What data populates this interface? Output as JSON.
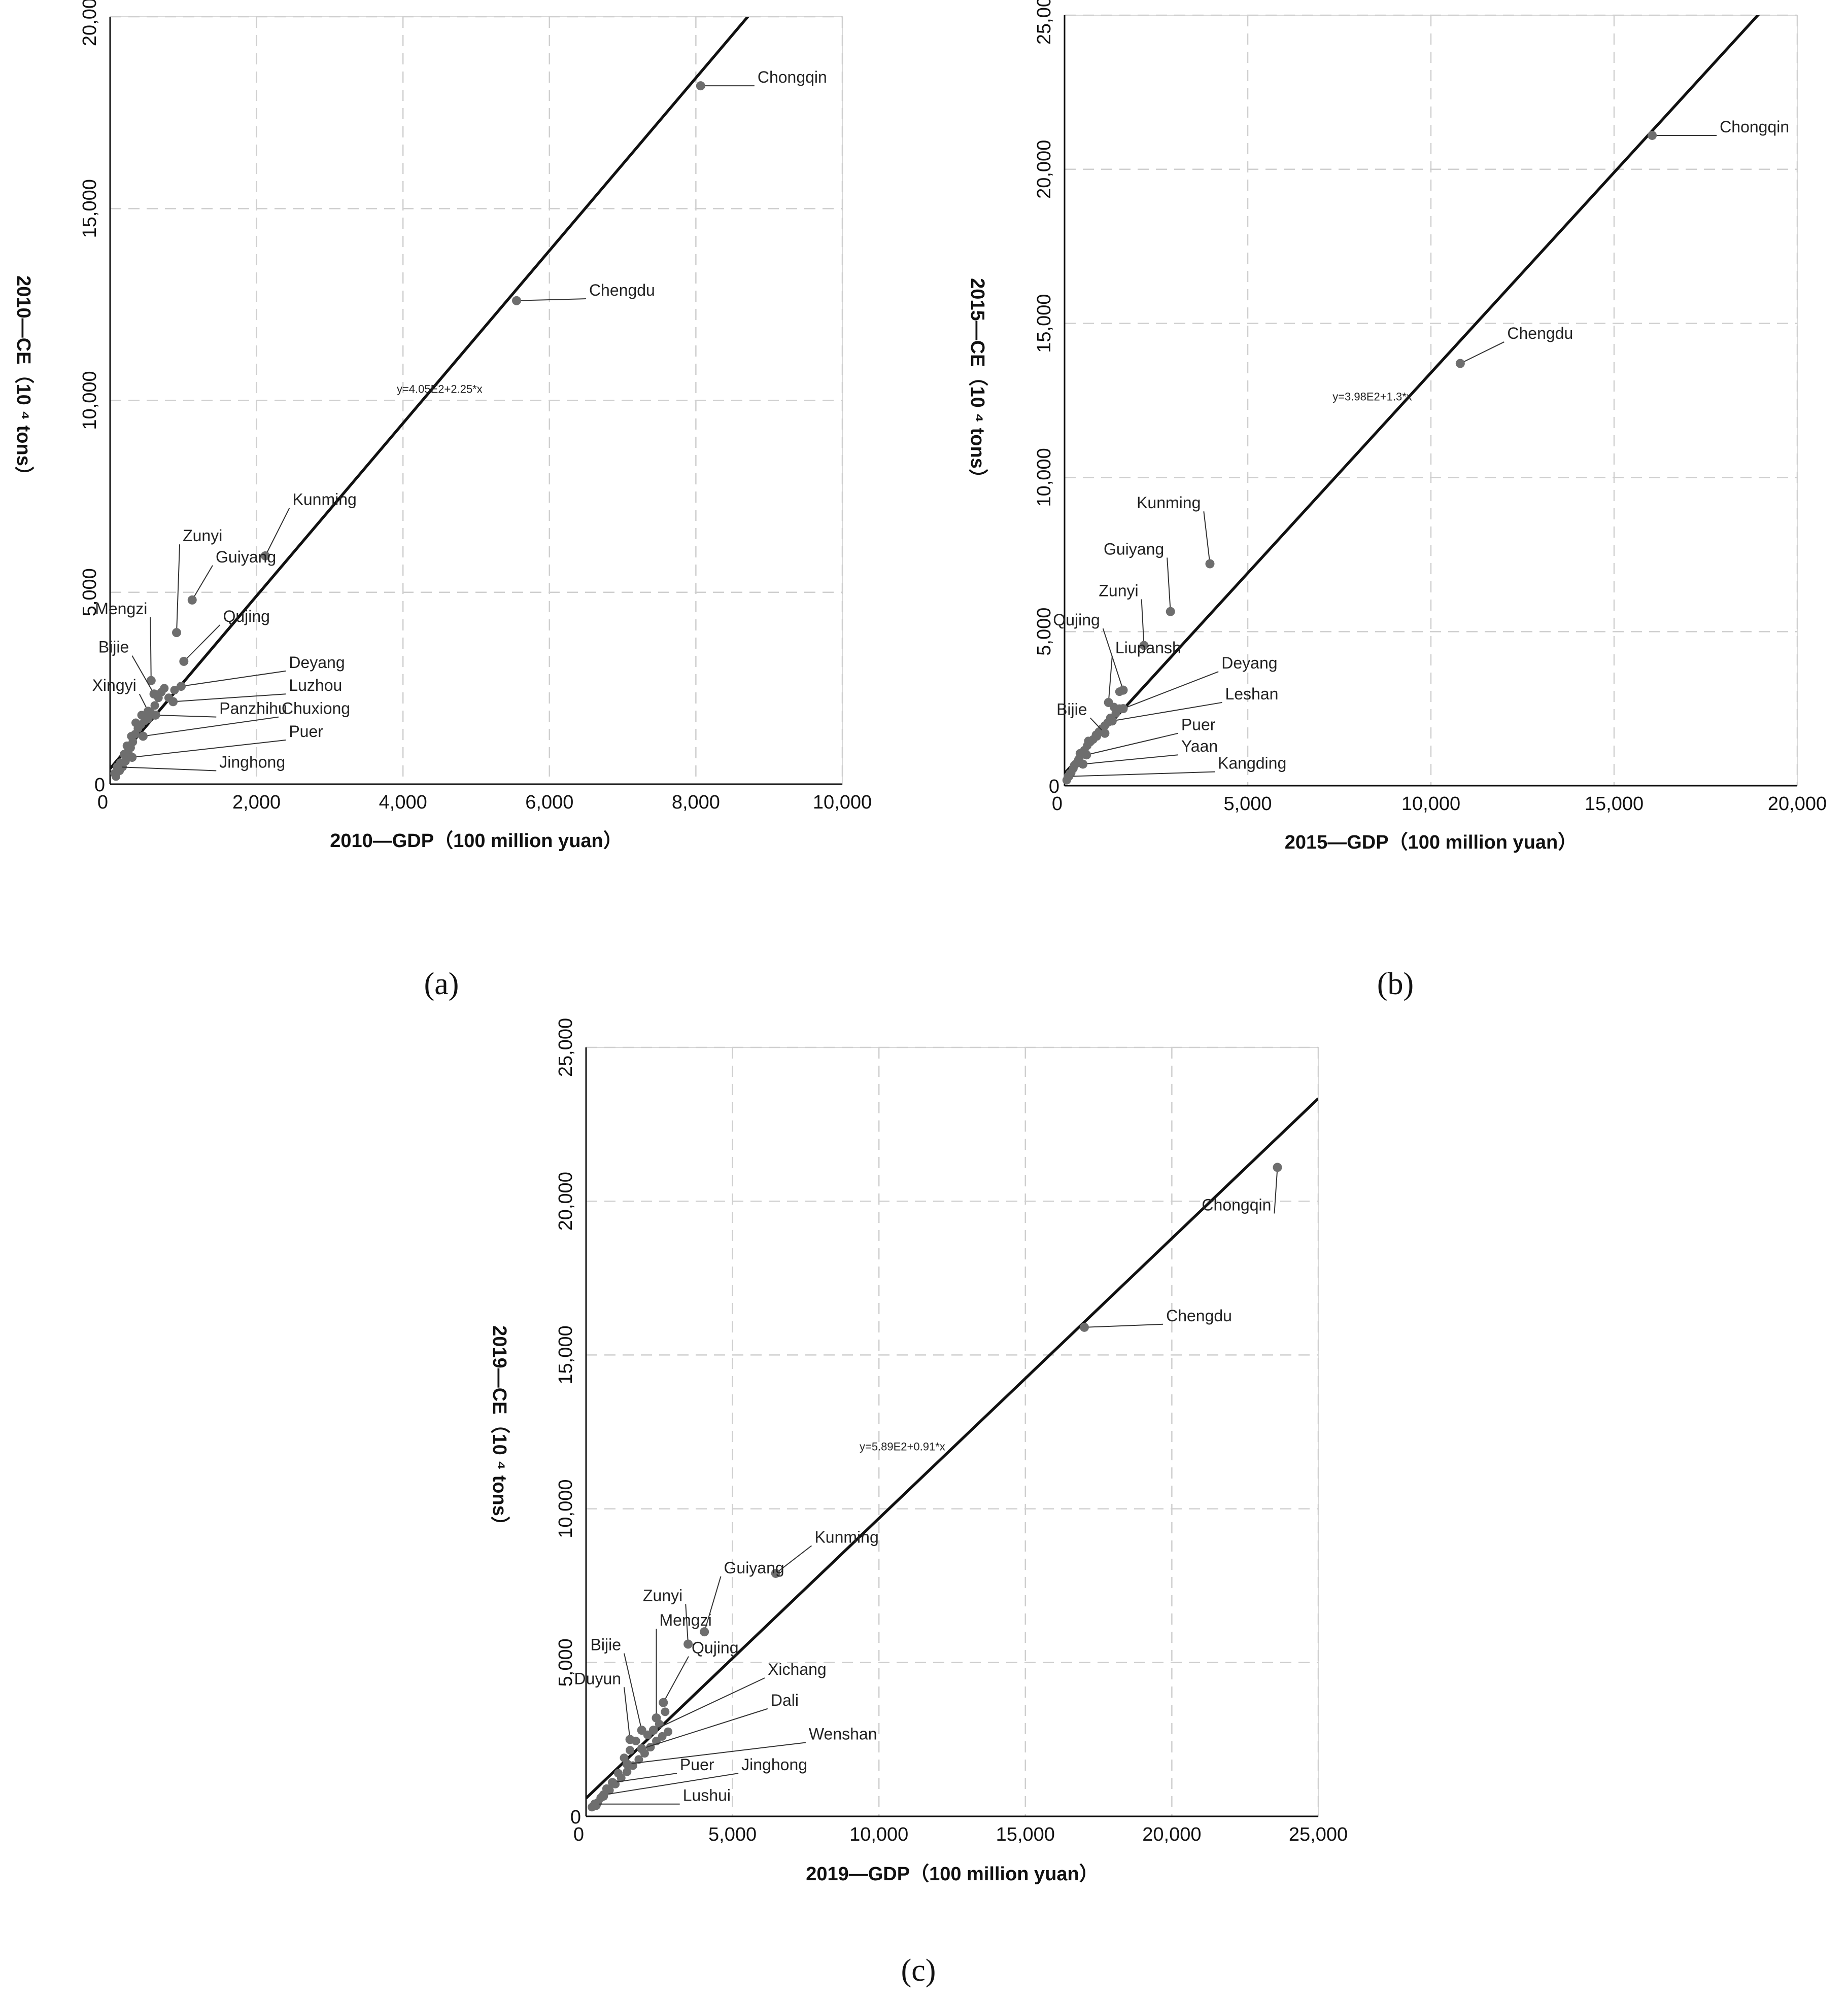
{
  "chart_data": [
    {
      "panel": "a",
      "type": "scatter",
      "caption": "(a)",
      "xlabel": "2010—GDP（100 million yuan）",
      "ylabel": "2010—CE（10 ⁴ tons）",
      "xlim": [
        0,
        10000
      ],
      "ylim": [
        0,
        20000
      ],
      "xticks": [
        0,
        2000,
        4000,
        6000,
        8000,
        10000
      ],
      "yticks": [
        0,
        5000,
        10000,
        15000,
        20000
      ],
      "xtick_labels": [
        "0",
        "2,000",
        "4,000",
        "6,000",
        "8,000",
        "10,000"
      ],
      "ytick_labels": [
        "0",
        "5,000",
        "10,000",
        "15,000",
        "20,000"
      ],
      "grid": true,
      "fit": {
        "equation": "y=4.05E2+2.25*x",
        "intercept": 405,
        "slope": 2.25,
        "label_at": [
          4500,
          10200
        ]
      },
      "labeled_points": [
        {
          "name": "Chongqin",
          "x": 8065,
          "y": 18200,
          "label_at": [
            8800,
            18200
          ]
        },
        {
          "name": "Chengdu",
          "x": 5551,
          "y": 12600,
          "label_at": [
            6500,
            12650
          ]
        },
        {
          "name": "Kunming",
          "x": 2120,
          "y": 5950,
          "label_at": [
            2450,
            7200
          ]
        },
        {
          "name": "Zunyi",
          "x": 908,
          "y": 3950,
          "label_at": [
            950,
            6250
          ]
        },
        {
          "name": "Guiyang",
          "x": 1121,
          "y": 4800,
          "label_at": [
            1400,
            5700
          ]
        },
        {
          "name": "Mengzi",
          "x": 560,
          "y": 2700,
          "label_at": [
            550,
            4350
          ]
        },
        {
          "name": "Qujing",
          "x": 1007,
          "y": 3200,
          "label_at": [
            1500,
            4150
          ]
        },
        {
          "name": "Bijie",
          "x": 600,
          "y": 2350,
          "label_at": [
            300,
            3350
          ]
        },
        {
          "name": "Xingyi",
          "x": 520,
          "y": 1900,
          "label_at": [
            400,
            2350
          ]
        },
        {
          "name": "Deyang",
          "x": 970,
          "y": 2550,
          "label_at": [
            2400,
            2950
          ]
        },
        {
          "name": "Luzhou",
          "x": 860,
          "y": 2150,
          "label_at": [
            2400,
            2350
          ]
        },
        {
          "name": "Panzhihu",
          "x": 620,
          "y": 1800,
          "label_at": [
            1450,
            1750
          ]
        },
        {
          "name": "Chuxiong",
          "x": 450,
          "y": 1250,
          "label_at": [
            2300,
            1750
          ]
        },
        {
          "name": "Puer",
          "x": 300,
          "y": 700,
          "label_at": [
            2400,
            1150
          ]
        },
        {
          "name": "Jinghong",
          "x": 100,
          "y": 450,
          "label_at": [
            1450,
            350
          ]
        }
      ],
      "cluster_points": [
        [
          80,
          200
        ],
        [
          130,
          350
        ],
        [
          170,
          450
        ],
        [
          210,
          600
        ],
        [
          250,
          800
        ],
        [
          280,
          950
        ],
        [
          310,
          1100
        ],
        [
          340,
          1300
        ],
        [
          380,
          1450
        ],
        [
          420,
          1550
        ],
        [
          470,
          1650
        ],
        [
          520,
          1700
        ],
        [
          560,
          1850
        ],
        [
          610,
          2050
        ],
        [
          660,
          2250
        ],
        [
          700,
          2400
        ],
        [
          740,
          2500
        ],
        [
          800,
          2250
        ],
        [
          880,
          2450
        ],
        [
          350,
          1600
        ],
        [
          430,
          1800
        ],
        [
          290,
          1250
        ],
        [
          230,
          1000
        ],
        [
          190,
          780
        ],
        [
          140,
          560
        ],
        [
          100,
          420
        ],
        [
          60,
          280
        ]
      ]
    },
    {
      "panel": "b",
      "type": "scatter",
      "caption": "(b)",
      "xlabel": "2015—GDP（100 million yuan）",
      "ylabel": "2015—CE（10 ⁴ tons）",
      "xlim": [
        0,
        20000
      ],
      "ylim": [
        0,
        25000
      ],
      "xticks": [
        0,
        5000,
        10000,
        15000,
        20000
      ],
      "yticks": [
        0,
        5000,
        10000,
        15000,
        20000,
        25000
      ],
      "xtick_labels": [
        "0",
        "5,000",
        "10,000",
        "15,000",
        "20,000"
      ],
      "ytick_labels": [
        "0",
        "5,000",
        "10,000",
        "15,000",
        "20,000",
        "25,000"
      ],
      "grid": true,
      "fit": {
        "equation": "y=3.98E2+1.3*x",
        "intercept": 398,
        "slope": 1.3,
        "label_at": [
          8400,
          12500
        ]
      },
      "labeled_points": [
        {
          "name": "Chongqin",
          "x": 16040,
          "y": 21100,
          "label_at": [
            17800,
            21100
          ]
        },
        {
          "name": "Chengdu",
          "x": 10801,
          "y": 13700,
          "label_at": [
            12000,
            14400
          ]
        },
        {
          "name": "Kunming",
          "x": 3968,
          "y": 7200,
          "label_at": [
            3800,
            8900
          ]
        },
        {
          "name": "Guiyang",
          "x": 2891,
          "y": 5650,
          "label_at": [
            2800,
            7400
          ]
        },
        {
          "name": "Zunyi",
          "x": 2168,
          "y": 4550,
          "label_at": [
            2100,
            6050
          ]
        },
        {
          "name": "Qujing",
          "x": 1600,
          "y": 3100,
          "label_at": [
            1050,
            5100
          ]
        },
        {
          "name": "Liupansh",
          "x": 1200,
          "y": 2700,
          "label_at": [
            1300,
            4200
          ]
        },
        {
          "name": "Deyang",
          "x": 1600,
          "y": 2500,
          "label_at": [
            4200,
            3700
          ]
        },
        {
          "name": "Bijie",
          "x": 1100,
          "y": 1700,
          "label_at": [
            700,
            2200
          ]
        },
        {
          "name": "Leshan",
          "x": 1300,
          "y": 2100,
          "label_at": [
            4300,
            2700
          ]
        },
        {
          "name": "Puer",
          "x": 600,
          "y": 1000,
          "label_at": [
            3100,
            1700
          ]
        },
        {
          "name": "Yaan",
          "x": 500,
          "y": 700,
          "label_at": [
            3100,
            1000
          ]
        },
        {
          "name": "Kangding",
          "x": 100,
          "y": 300,
          "label_at": [
            4100,
            450
          ]
        }
      ],
      "cluster_points": [
        [
          60,
          180
        ],
        [
          120,
          300
        ],
        [
          180,
          420
        ],
        [
          240,
          560
        ],
        [
          300,
          700
        ],
        [
          380,
          850
        ],
        [
          460,
          1000
        ],
        [
          540,
          1150
        ],
        [
          620,
          1300
        ],
        [
          700,
          1420
        ],
        [
          780,
          1500
        ],
        [
          860,
          1650
        ],
        [
          940,
          1750
        ],
        [
          1020,
          1850
        ],
        [
          1100,
          1950
        ],
        [
          1180,
          2050
        ],
        [
          1250,
          2200
        ],
        [
          1400,
          2350
        ],
        [
          1500,
          2500
        ],
        [
          1350,
          2550
        ],
        [
          1500,
          3050
        ],
        [
          1200,
          2700
        ],
        [
          880,
          1600
        ],
        [
          650,
          1450
        ],
        [
          420,
          1050
        ],
        [
          260,
          650
        ],
        [
          150,
          400
        ]
      ]
    },
    {
      "panel": "c",
      "type": "scatter",
      "caption": "(c)",
      "xlabel": "2019—GDP（100 million yuan）",
      "ylabel": "2019—CE（10 ⁴ tons）",
      "xlim": [
        0,
        25000
      ],
      "ylim": [
        0,
        25000
      ],
      "xticks": [
        0,
        5000,
        10000,
        15000,
        20000,
        25000
      ],
      "yticks": [
        0,
        5000,
        10000,
        15000,
        20000,
        25000
      ],
      "xtick_labels": [
        "0",
        "5,000",
        "10,000",
        "15,000",
        "20,000",
        "25,000"
      ],
      "ytick_labels": [
        "0",
        "5,000",
        "10,000",
        "15,000",
        "20,000",
        "25,000"
      ],
      "grid": true,
      "fit": {
        "equation": "y=5.89E2+0.91*x",
        "intercept": 589,
        "slope": 0.91,
        "label_at": [
          10800,
          11900
        ]
      },
      "labeled_points": [
        {
          "name": "Chongqin",
          "x": 23606,
          "y": 21100,
          "label_at": [
            23500,
            19600
          ]
        },
        {
          "name": "Chengdu",
          "x": 17013,
          "y": 15900,
          "label_at": [
            19700,
            16000
          ]
        },
        {
          "name": "Kunming",
          "x": 6476,
          "y": 7900,
          "label_at": [
            7700,
            8800
          ]
        },
        {
          "name": "Guiyang",
          "x": 4040,
          "y": 6000,
          "label_at": [
            4600,
            7800
          ]
        },
        {
          "name": "Zunyi",
          "x": 3484,
          "y": 5600,
          "label_at": [
            3400,
            6900
          ]
        },
        {
          "name": "Mengzi",
          "x": 2400,
          "y": 3200,
          "label_at": [
            2400,
            6100
          ]
        },
        {
          "name": "Bijie",
          "x": 1900,
          "y": 2800,
          "label_at": [
            1300,
            5300
          ]
        },
        {
          "name": "Qujing",
          "x": 2638,
          "y": 3700,
          "label_at": [
            3500,
            5200
          ]
        },
        {
          "name": "Duyun",
          "x": 1500,
          "y": 2500,
          "label_at": [
            1300,
            4200
          ]
        },
        {
          "name": "Xichang",
          "x": 2300,
          "y": 2800,
          "label_at": [
            6100,
            4500
          ]
        },
        {
          "name": "Dali",
          "x": 1900,
          "y": 2200,
          "label_at": [
            6200,
            3500
          ]
        },
        {
          "name": "Wenshan",
          "x": 1400,
          "y": 1700,
          "label_at": [
            7500,
            2400
          ]
        },
        {
          "name": "Puer",
          "x": 900,
          "y": 1100,
          "label_at": [
            3100,
            1400
          ]
        },
        {
          "name": "Jinghong",
          "x": 600,
          "y": 700,
          "label_at": [
            5200,
            1400
          ]
        },
        {
          "name": "Lushui",
          "x": 300,
          "y": 400,
          "label_at": [
            3200,
            400
          ]
        }
      ],
      "cluster_points": [
        [
          200,
          300
        ],
        [
          400,
          450
        ],
        [
          600,
          650
        ],
        [
          800,
          850
        ],
        [
          1000,
          1050
        ],
        [
          1200,
          1250
        ],
        [
          1400,
          1450
        ],
        [
          1600,
          1650
        ],
        [
          1800,
          1850
        ],
        [
          2000,
          2050
        ],
        [
          2200,
          2250
        ],
        [
          2400,
          2450
        ],
        [
          2600,
          2600
        ],
        [
          2800,
          2750
        ],
        [
          1300,
          1900
        ],
        [
          1700,
          2450
        ],
        [
          2100,
          2650
        ],
        [
          2500,
          3000
        ],
        [
          2700,
          3400
        ],
        [
          1500,
          2150
        ],
        [
          1100,
          1400
        ],
        [
          700,
          900
        ],
        [
          500,
          600
        ],
        [
          350,
          350
        ]
      ]
    }
  ]
}
